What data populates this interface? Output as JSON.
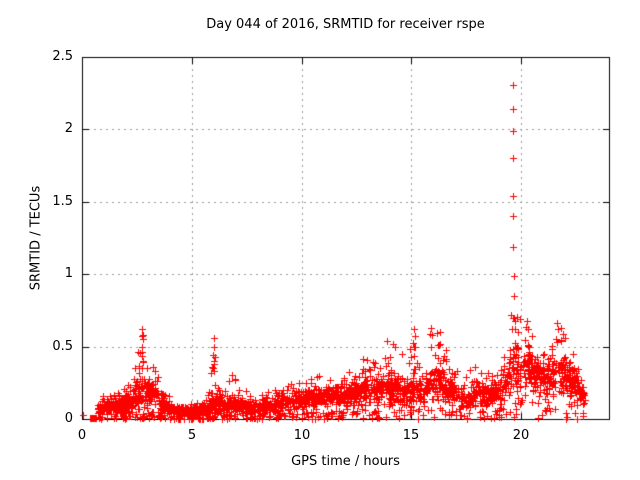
{
  "window": {
    "background": "#ffffff"
  },
  "chart_data": {
    "type": "scatter",
    "title": "Day 044 of 2016, SRMTID for receiver rspe",
    "xlabel": "GPS time / hours",
    "ylabel": "SRMTID / TECUs",
    "xlim": [
      0,
      24
    ],
    "ylim": [
      0,
      2.5
    ],
    "xticks": [
      0,
      5,
      10,
      15,
      20
    ],
    "yticks": [
      0,
      0.5,
      1,
      1.5,
      2,
      2.5
    ],
    "grid": {
      "show": true,
      "color": "#9b9b9b",
      "dash": [
        2,
        4
      ]
    },
    "legend": false,
    "colors": {
      "marker": "#ff0000",
      "border": "#000000",
      "text": "#000000"
    },
    "marker": {
      "shape": "plus",
      "size": 7
    },
    "series": [
      {
        "name": "srmtid-band",
        "kind": "envelope-scatter",
        "seed": 2016044,
        "points_per_hour": 112,
        "envelope": [
          [
            0.7,
            0.01,
            0.07,
            0.15
          ],
          [
            1.2,
            0.02,
            0.09,
            0.18
          ],
          [
            1.8,
            0.02,
            0.1,
            0.2
          ],
          [
            2.3,
            0.03,
            0.12,
            0.28
          ],
          [
            2.6,
            0.04,
            0.18,
            0.5
          ],
          [
            2.8,
            0.04,
            0.2,
            0.62
          ],
          [
            3.0,
            0.05,
            0.18,
            0.42
          ],
          [
            3.4,
            0.06,
            0.16,
            0.38
          ],
          [
            3.7,
            0.03,
            0.1,
            0.24
          ],
          [
            4.1,
            0.01,
            0.06,
            0.14
          ],
          [
            4.6,
            0.01,
            0.05,
            0.11
          ],
          [
            5.2,
            0.01,
            0.05,
            0.11
          ],
          [
            5.7,
            0.02,
            0.06,
            0.14
          ],
          [
            5.95,
            0.02,
            0.1,
            0.42
          ],
          [
            6.05,
            0.02,
            0.12,
            0.56
          ],
          [
            6.2,
            0.02,
            0.09,
            0.3
          ],
          [
            6.6,
            0.03,
            0.1,
            0.28
          ],
          [
            6.9,
            0.03,
            0.11,
            0.32
          ],
          [
            7.2,
            0.02,
            0.07,
            0.18
          ],
          [
            7.6,
            0.02,
            0.08,
            0.22
          ],
          [
            8.0,
            0.01,
            0.06,
            0.16
          ],
          [
            8.4,
            0.02,
            0.08,
            0.18
          ],
          [
            8.8,
            0.03,
            0.1,
            0.24
          ],
          [
            9.2,
            0.03,
            0.1,
            0.22
          ],
          [
            9.6,
            0.04,
            0.12,
            0.3
          ],
          [
            10.0,
            0.04,
            0.12,
            0.27
          ],
          [
            10.5,
            0.05,
            0.14,
            0.33
          ],
          [
            11.0,
            0.05,
            0.14,
            0.31
          ],
          [
            11.5,
            0.06,
            0.16,
            0.36
          ],
          [
            12.0,
            0.06,
            0.16,
            0.34
          ],
          [
            12.5,
            0.07,
            0.17,
            0.4
          ],
          [
            12.9,
            0.07,
            0.19,
            0.44
          ],
          [
            13.3,
            0.07,
            0.18,
            0.42
          ],
          [
            13.7,
            0.08,
            0.2,
            0.52
          ],
          [
            14.1,
            0.08,
            0.21,
            0.55
          ],
          [
            14.5,
            0.08,
            0.21,
            0.52
          ],
          [
            14.8,
            0.08,
            0.18,
            0.42
          ],
          [
            15.1,
            0.09,
            0.22,
            0.62
          ],
          [
            15.5,
            0.07,
            0.18,
            0.42
          ],
          [
            15.9,
            0.09,
            0.22,
            0.63
          ],
          [
            16.3,
            0.09,
            0.23,
            0.6
          ],
          [
            16.7,
            0.07,
            0.18,
            0.42
          ],
          [
            17.1,
            0.06,
            0.15,
            0.36
          ],
          [
            17.5,
            0.05,
            0.13,
            0.3
          ],
          [
            17.9,
            0.06,
            0.15,
            0.4
          ],
          [
            18.3,
            0.06,
            0.16,
            0.42
          ],
          [
            18.7,
            0.07,
            0.17,
            0.38
          ],
          [
            19.1,
            0.08,
            0.2,
            0.47
          ],
          [
            19.4,
            0.12,
            0.28,
            0.58
          ],
          [
            19.6,
            0.15,
            0.35,
            0.72
          ],
          [
            19.9,
            0.15,
            0.34,
            0.7
          ],
          [
            20.2,
            0.17,
            0.38,
            0.68
          ],
          [
            20.5,
            0.14,
            0.32,
            0.62
          ],
          [
            20.8,
            0.12,
            0.27,
            0.48
          ],
          [
            21.1,
            0.12,
            0.26,
            0.46
          ],
          [
            21.4,
            0.14,
            0.3,
            0.58
          ],
          [
            21.7,
            0.15,
            0.33,
            0.66
          ],
          [
            22.0,
            0.14,
            0.3,
            0.56
          ],
          [
            22.3,
            0.11,
            0.26,
            0.5
          ],
          [
            22.6,
            0.07,
            0.2,
            0.42
          ],
          [
            22.9,
            0.04,
            0.12,
            0.24
          ]
        ]
      },
      {
        "name": "srmtid-spike-19.6h",
        "kind": "points",
        "points": [
          [
            19.63,
            2.31
          ],
          [
            19.64,
            2.14
          ],
          [
            19.63,
            1.99
          ],
          [
            19.63,
            1.8
          ],
          [
            19.64,
            1.54
          ],
          [
            19.63,
            1.4
          ],
          [
            19.64,
            1.19
          ],
          [
            19.66,
            0.99
          ],
          [
            19.66,
            0.85
          ],
          [
            19.69,
            0.7
          ]
        ]
      },
      {
        "name": "local-peaks",
        "kind": "points",
        "points": [
          [
            2.75,
            0.62
          ],
          [
            2.78,
            0.55
          ],
          [
            2.72,
            0.5
          ],
          [
            2.75,
            0.57
          ],
          [
            2.74,
            0.46
          ],
          [
            2.76,
            0.4
          ],
          [
            2.73,
            0.35
          ],
          [
            6.0,
            0.56
          ],
          [
            6.02,
            0.5
          ],
          [
            5.98,
            0.44
          ],
          [
            6.01,
            0.38
          ],
          [
            6.0,
            0.33
          ],
          [
            13.9,
            0.54
          ],
          [
            15.1,
            0.62
          ],
          [
            15.15,
            0.57
          ],
          [
            15.1,
            0.5
          ],
          [
            15.9,
            0.63
          ],
          [
            15.95,
            0.58
          ],
          [
            15.9,
            0.5
          ],
          [
            16.3,
            0.6
          ],
          [
            16.32,
            0.52
          ],
          [
            19.55,
            0.72
          ],
          [
            19.62,
            0.7
          ],
          [
            19.7,
            0.68
          ],
          [
            19.6,
            0.62
          ],
          [
            20.25,
            0.68
          ],
          [
            20.3,
            0.62
          ],
          [
            21.65,
            0.66
          ],
          [
            21.7,
            0.62
          ],
          [
            21.6,
            0.55
          ],
          [
            22.0,
            0.56
          ]
        ]
      },
      {
        "name": "first-sample",
        "kind": "points",
        "points": [
          [
            0.06,
            0.03
          ]
        ]
      },
      {
        "name": "start-marker-square",
        "kind": "points",
        "marker": "square",
        "points": [
          [
            0.51,
            0.01
          ]
        ]
      }
    ]
  }
}
